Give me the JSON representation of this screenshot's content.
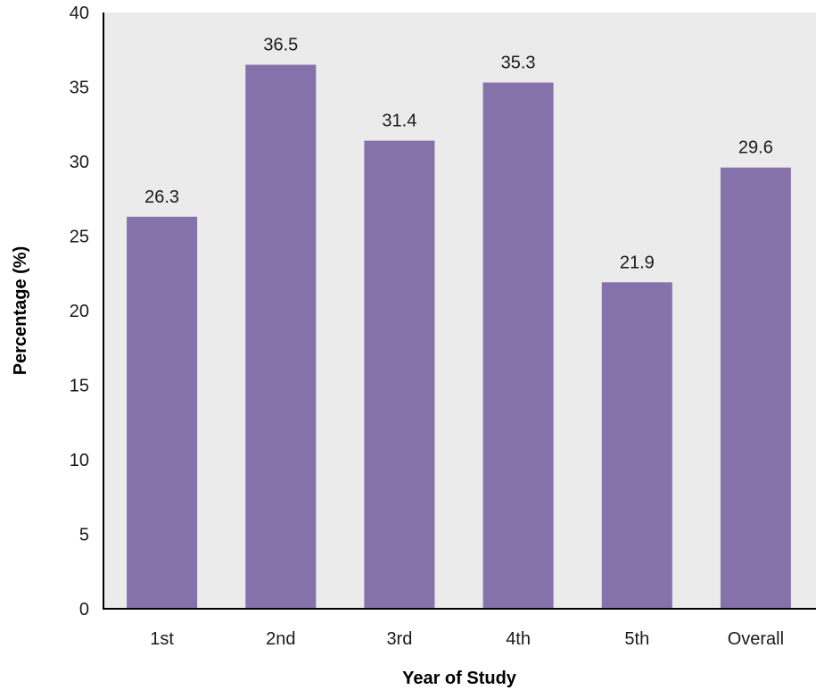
{
  "chart_data": {
    "type": "bar",
    "title": "",
    "xlabel": "Year of Study",
    "ylabel": "Percentage (%)",
    "categories": [
      "1st",
      "2nd",
      "3rd",
      "4th",
      "5th",
      "Overall"
    ],
    "values": [
      26.3,
      36.5,
      31.4,
      35.3,
      21.9,
      29.6
    ],
    "data_labels": [
      "26.3",
      "36.5",
      "31.4",
      "35.3",
      "21.9",
      "29.6"
    ],
    "ylim": [
      0,
      40
    ],
    "yticks": [
      "0",
      "5",
      "10",
      "15",
      "20",
      "25",
      "30",
      "35",
      "40"
    ],
    "grid": false,
    "legend": "none",
    "colors": {
      "bar": "#8572AB",
      "plot_background": "#EBEBEB",
      "axis": "#000000"
    }
  }
}
